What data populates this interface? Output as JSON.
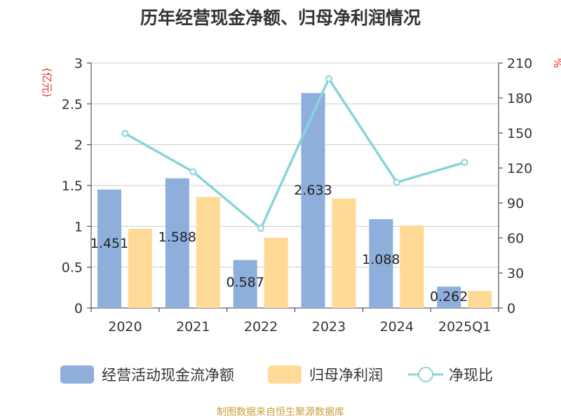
{
  "chart_data": {
    "type": "bar",
    "title": "历年经营现金净额、归母净利润情况",
    "categories": [
      "2020",
      "2021",
      "2022",
      "2023",
      "2024",
      "2025Q1"
    ],
    "series": [
      {
        "name": "经营活动现金流净额",
        "type": "bar",
        "axis": "left",
        "color": "#8eaedc",
        "values": [
          1.451,
          1.588,
          0.587,
          2.633,
          1.088,
          0.262
        ],
        "labels": [
          "1.451",
          "1.588",
          "0.587",
          "2.633",
          "1.088",
          "0.262"
        ]
      },
      {
        "name": "归母净利润",
        "type": "bar",
        "axis": "left",
        "color": "#ffd996",
        "values": [
          0.97,
          1.36,
          0.86,
          1.34,
          1.01,
          0.21
        ]
      },
      {
        "name": "净现比",
        "type": "line",
        "axis": "right",
        "color": "#88d4d9",
        "values": [
          149.6,
          116.8,
          68.3,
          196.5,
          107.7,
          124.8
        ]
      }
    ],
    "left_axis": {
      "unit": "(亿元)",
      "ylim": [
        0,
        3
      ],
      "ticks": [
        "0",
        "0.5",
        "1",
        "1.5",
        "2",
        "2.5",
        "3"
      ]
    },
    "right_axis": {
      "unit": "%",
      "ylim": [
        0,
        210
      ],
      "ticks": [
        "0",
        "30",
        "60",
        "90",
        "120",
        "150",
        "180",
        "210"
      ]
    },
    "grid": true,
    "legend_position": "bottom"
  },
  "footer": {
    "source": "制图数据来自恒生聚源数据库"
  }
}
